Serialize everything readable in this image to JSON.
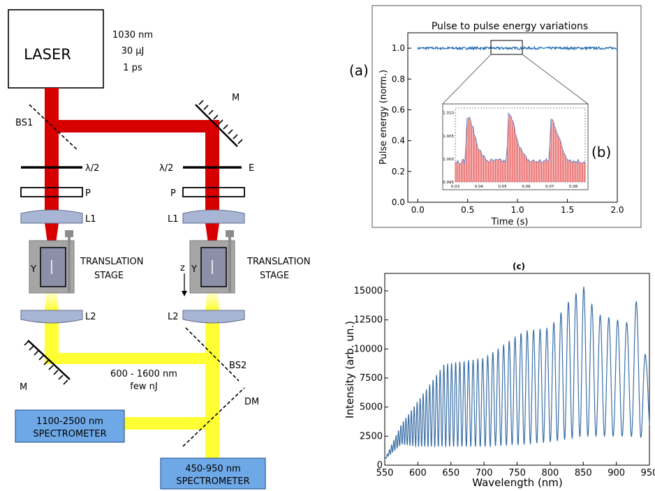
{
  "setup": {
    "laser_label": "LASER",
    "laser_specs": [
      "1030 nm",
      "30 μJ",
      "1 ps"
    ],
    "left_arm": {
      "beamsplitter": "BS1",
      "waveplate": "λ/2",
      "polarizer": "P",
      "lens1": "L1",
      "crystal": "Y",
      "stage": [
        "TRANSLATION",
        "STAGE"
      ],
      "lens2": "L2",
      "mirror": "M"
    },
    "right_arm": {
      "mirror": "M",
      "waveplate": "λ/2",
      "attenuator": "E",
      "polarizer": "P",
      "lens1": "L1",
      "z_axis": "z",
      "crystal": "Y",
      "stage": [
        "TRANSLATION",
        "STAGE"
      ],
      "lens2": "L2",
      "beamsplitter": "BS2",
      "dichroic": "DM"
    },
    "supercontinuum": [
      "600 - 1600 nm",
      "few nJ"
    ],
    "spectrometer_ir": [
      "1100-2500 nm",
      "SPECTROMETER"
    ],
    "spectrometer_vis": [
      "450-950 nm",
      "SPECTROMETER"
    ],
    "colors": {
      "laser_beam": "#d60000",
      "sc_beam": "#ffff33",
      "spectrometer_box": "#6fa8e6",
      "stage": "#a6a6a6",
      "crystal": "#8c8fa8",
      "lens": "#a9b5d4"
    }
  },
  "panel_labels": {
    "a": "(a)",
    "b": "(b)",
    "c": "(c)"
  },
  "chart_data": [
    {
      "type": "line",
      "title": "Pulse to pulse energy variations",
      "xlabel": "Time (s)",
      "ylabel": "Pulse energy (norm.)",
      "xlim": [
        -0.1,
        2.0
      ],
      "ylim": [
        0.0,
        1.1
      ],
      "xticks": [
        "0.0",
        "0.5",
        "1.0",
        "1.5",
        "2.0"
      ],
      "yticks": [
        "0.0",
        "0.2",
        "0.4",
        "0.6",
        "0.8",
        "1.0"
      ],
      "series": [
        {
          "mean": 1.0,
          "x_range": [
            0.0,
            2.0
          ],
          "noise_amplitude": 0.008,
          "color": "#2a6fb5"
        }
      ],
      "grid": false
    },
    {
      "type": "bar",
      "inset_of": 0,
      "xlim": [
        0.03,
        0.085
      ],
      "ylim": [
        0.995,
        1.011
      ],
      "xticks": [
        "0.03",
        "0.04",
        "0.05",
        "0.06",
        "0.07",
        "0.08"
      ],
      "yticks": [
        "0.995",
        "1.000",
        "1.005",
        "1.010"
      ],
      "peaks": [
        {
          "x": 0.035,
          "y": 1.009
        },
        {
          "x": 0.0525,
          "y": 1.0095
        },
        {
          "x": 0.0705,
          "y": 1.0085
        }
      ],
      "baseline": 0.9995,
      "bar_color": "#e02020",
      "line_color": "#6c7fc7"
    },
    {
      "type": "line",
      "title": "(c)",
      "xlabel": "Wavelength (nm)",
      "ylabel": "Intensity (arb. un.)",
      "xlim": [
        550,
        950
      ],
      "ylim": [
        0,
        16500
      ],
      "xticks": [
        "550",
        "600",
        "650",
        "700",
        "750",
        "800",
        "850",
        "900",
        "950"
      ],
      "yticks": [
        "0",
        "2500",
        "5000",
        "7500",
        "10000",
        "12500",
        "15000"
      ],
      "series": [
        {
          "envelope_x": [
            550,
            575,
            600,
            640,
            700,
            760,
            800,
            830,
            850,
            870,
            900,
            920,
            935,
            945,
            950
          ],
          "envelope_max": [
            500,
            3500,
            5500,
            8700,
            9200,
            11500,
            11800,
            14200,
            15400,
            13000,
            12500,
            12200,
            15000,
            9000,
            8500
          ],
          "envelope_min": [
            500,
            1800,
            1600,
            1600,
            1600,
            1800,
            2000,
            2300,
            2500,
            2500,
            2500,
            2500,
            2400,
            2400,
            2400
          ],
          "color": "#3b6fa6"
        }
      ],
      "grid": false
    }
  ]
}
